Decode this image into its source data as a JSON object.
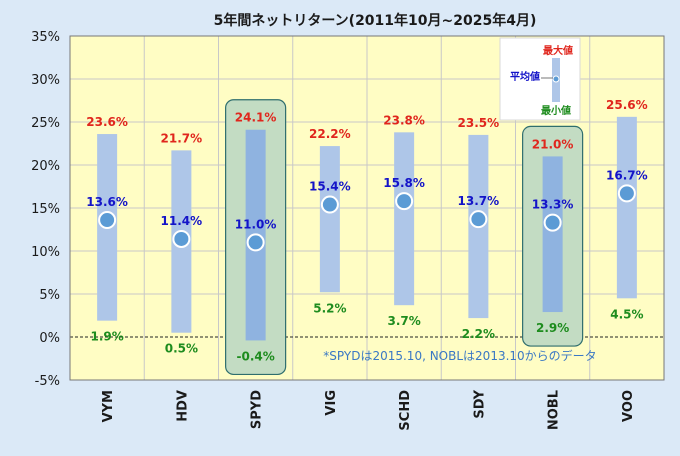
{
  "chart_data": {
    "type": "bar",
    "title": "5年間ネットリターン(2011年10月~2025年4月)",
    "categories": [
      "VYM",
      "HDV",
      "SPYD",
      "VIG",
      "SCHD",
      "SDY",
      "NOBL",
      "VOO"
    ],
    "series": [
      {
        "name": "最大値",
        "values": [
          23.6,
          21.7,
          24.1,
          22.2,
          23.8,
          23.5,
          21.0,
          25.6
        ]
      },
      {
        "name": "平均値",
        "values": [
          13.6,
          11.4,
          11.0,
          15.4,
          15.8,
          13.7,
          13.3,
          16.7
        ]
      },
      {
        "name": "最小値",
        "values": [
          1.9,
          0.5,
          -0.4,
          5.2,
          3.7,
          2.2,
          2.9,
          4.5
        ]
      }
    ],
    "max_labels": [
      "23.6%",
      "21.7%",
      "24.1%",
      "22.2%",
      "23.8%",
      "23.5%",
      "21.0%",
      "25.6%"
    ],
    "mean_labels": [
      "13.6%",
      "11.4%",
      "11.0%",
      "15.4%",
      "15.8%",
      "13.7%",
      "13.3%",
      "16.7%"
    ],
    "min_labels": [
      "1.9%",
      "0.5%",
      "-0.4%",
      "5.2%",
      "3.7%",
      "2.2%",
      "2.9%",
      "4.5%"
    ],
    "y_ticks": [
      -5,
      0,
      5,
      10,
      15,
      20,
      25,
      30,
      35
    ],
    "y_tick_labels": [
      "-5%",
      "0%",
      "5%",
      "10%",
      "15%",
      "20%",
      "25%",
      "30%",
      "35%"
    ],
    "ylim": [
      -5,
      35
    ],
    "highlighted_categories": [
      "SPYD",
      "NOBL"
    ],
    "legend": {
      "max_label": "最大値",
      "mean_label": "平均値",
      "min_label": "最小値"
    },
    "note": "*SPYDは2015.10, NOBLは2013.10からのデータ",
    "grid": true,
    "legend_position": "top-right",
    "colors": {
      "plot_bg": "#fffdc4",
      "page_bg": "#dbe9f7",
      "bar": "#aec6e8",
      "bar_highlight": "#8fb3e0",
      "marker": "#5b9bd5",
      "max_text": "#e0261d",
      "mean_text": "#1414c8",
      "min_text": "#1e8c1e",
      "highlight_fill": "#c3dcc3",
      "highlight_stroke": "#2f6e6e",
      "note_text": "#3a78c4"
    }
  }
}
